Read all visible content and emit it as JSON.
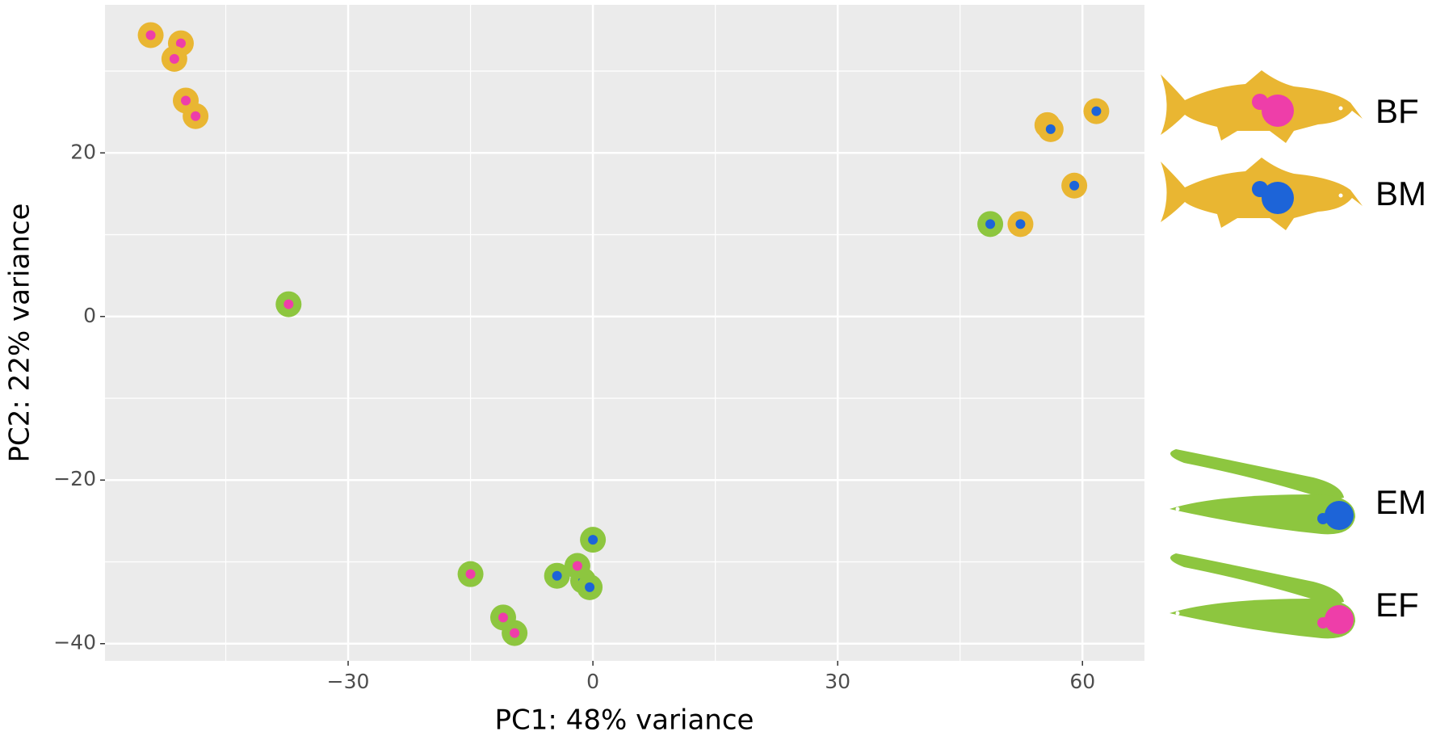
{
  "chart_data": {
    "type": "scatter",
    "x_label": "PC1: 48% variance",
    "y_label": "PC2: 22% variance",
    "xlim": [
      -59.8,
      67.6
    ],
    "ylim": [
      -42.1,
      38.1
    ],
    "xticks": [
      {
        "value": -30,
        "label": "−30"
      },
      0,
      30,
      60
    ],
    "yticks": [
      {
        "value": -40,
        "label": "−40"
      },
      {
        "value": -20,
        "label": "−20"
      },
      0,
      20
    ],
    "grid": true,
    "minor_grid": true,
    "series": [
      {
        "name": "BF",
        "color": "#e9b632",
        "inner_color": "#ee3ea9",
        "x": [
          -54.2,
          -50.5,
          -51.3,
          -49.9,
          -48.7
        ],
        "values": [
          34.4,
          33.4,
          31.5,
          26.4,
          24.5
        ]
      },
      {
        "name": "BM",
        "color": "#e9b632",
        "inner_color": "#1d64d8",
        "x": [
          52.4,
          55.7,
          56.1,
          59.0,
          61.7
        ],
        "values": [
          11.3,
          23.4,
          22.9,
          16.0,
          25.1
        ]
      },
      {
        "name": "EM",
        "color": "#8dc63f",
        "inner_color": "#1d64d8",
        "x": [
          -4.4,
          -1.2,
          -0.4,
          0.0,
          48.7
        ],
        "values": [
          -31.7,
          -32.3,
          -33.1,
          -27.3,
          11.3
        ]
      },
      {
        "name": "EF",
        "color": "#8dc63f",
        "inner_color": "#ee3ea9",
        "x": [
          -37.3,
          -15.0,
          -11.0,
          -9.6,
          -1.9
        ],
        "values": [
          1.5,
          -31.5,
          -36.8,
          -38.7,
          -30.5
        ]
      }
    ]
  }
}
